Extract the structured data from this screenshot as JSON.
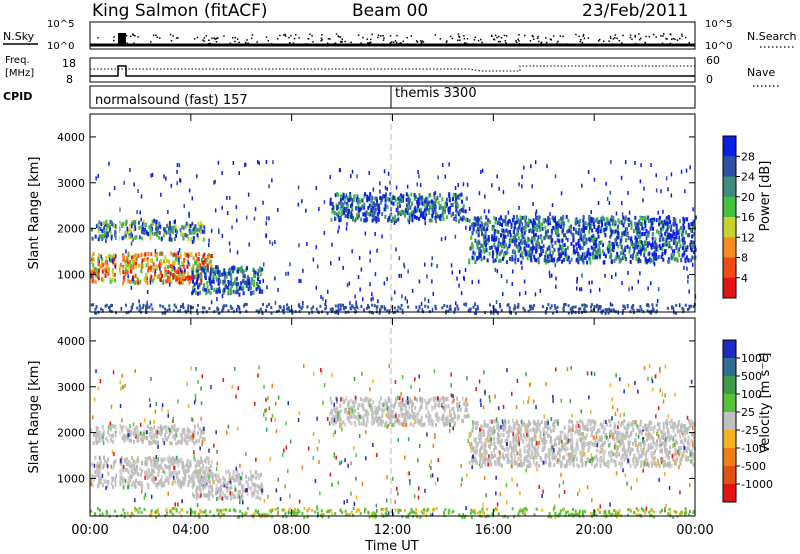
{
  "header": {
    "station": "King Salmon (fitACF)",
    "beam": "Beam 00",
    "date": "23/Feb/2011"
  },
  "top_panels": {
    "nsky_label": "N.Sky",
    "nsky_ticks": [
      "10^5",
      "10^0"
    ],
    "nsearch_label": "N.Search",
    "nsearch_ticks": [
      "10^5",
      "10^0"
    ],
    "freq_label_1": "Freq.",
    "freq_label_2": "[MHz]",
    "freq_ticks": [
      "18",
      "8"
    ],
    "nave_label": "Nave",
    "nave_ticks": [
      "60",
      "0"
    ],
    "cpid_label": "CPID",
    "cpid_entries": [
      {
        "label": "normalsound (fast) 157",
        "start_hour": 0
      },
      {
        "label": "themis 3300",
        "start_hour": 12
      }
    ]
  },
  "chart_data": [
    {
      "type": "heatmap",
      "name": "power",
      "ylabel": "Slant Range [km]",
      "xlabel": "",
      "xlim": [
        0,
        24
      ],
      "ylim": [
        180,
        4500
      ],
      "yticks": [
        1000,
        2000,
        3000,
        4000
      ],
      "colorbar": {
        "label": "Power [dB]",
        "ticks": [
          "28",
          "24",
          "20",
          "16",
          "12",
          "8",
          "4"
        ],
        "colors": [
          "#0a1fe6",
          "#2e4fa5",
          "#3f8c7d",
          "#40c23c",
          "#c8d22a",
          "#f28c1c",
          "#f24a16",
          "#e31414"
        ]
      },
      "bands": [
        {
          "x_start": 0.0,
          "x_end": 4.8,
          "range_start": 850,
          "range_end": 1500,
          "level": "high"
        },
        {
          "x_start": 0.0,
          "x_end": 4.5,
          "range_start": 1800,
          "range_end": 2200,
          "level": "medium"
        },
        {
          "x_start": 4.0,
          "x_end": 6.8,
          "range_start": 600,
          "range_end": 1200,
          "level": "low"
        },
        {
          "x_start": 9.5,
          "x_end": 15.0,
          "range_start": 2200,
          "range_end": 2800,
          "level": "low"
        },
        {
          "x_start": 15.0,
          "x_end": 24.0,
          "range_start": 1300,
          "range_end": 2300,
          "level": "low"
        }
      ]
    },
    {
      "type": "heatmap",
      "name": "velocity",
      "ylabel": "Slant Range [km]",
      "xlabel": "Time UT",
      "xlim": [
        0,
        24
      ],
      "ylim": [
        180,
        4500
      ],
      "yticks": [
        1000,
        2000,
        3000,
        4000
      ],
      "xticks": [
        "00:00",
        "04:00",
        "08:00",
        "12:00",
        "16:00",
        "20:00",
        "00:00"
      ],
      "colorbar": {
        "label": "Velocity [m s⁻¹]",
        "ticks": [
          "1000",
          "500",
          "100",
          "25",
          "-25",
          "-100",
          "-500",
          "-1000"
        ],
        "colors": [
          "#1d2bc4",
          "#2e6d94",
          "#3e9a4a",
          "#56c238",
          "#c0c0c0",
          "#f2b31c",
          "#f27c16",
          "#e35016",
          "#e31414"
        ]
      },
      "bands": [
        {
          "x_start": 0.0,
          "x_end": 4.8,
          "range_start": 850,
          "range_end": 1500,
          "level": "ground"
        },
        {
          "x_start": 0.0,
          "x_end": 4.5,
          "range_start": 1800,
          "range_end": 2200,
          "level": "ground"
        },
        {
          "x_start": 4.0,
          "x_end": 6.8,
          "range_start": 600,
          "range_end": 1200,
          "level": "ground"
        },
        {
          "x_start": 9.5,
          "x_end": 15.0,
          "range_start": 2200,
          "range_end": 2800,
          "level": "ground"
        },
        {
          "x_start": 15.0,
          "x_end": 24.0,
          "range_start": 1300,
          "range_end": 2300,
          "level": "ground"
        }
      ]
    }
  ]
}
